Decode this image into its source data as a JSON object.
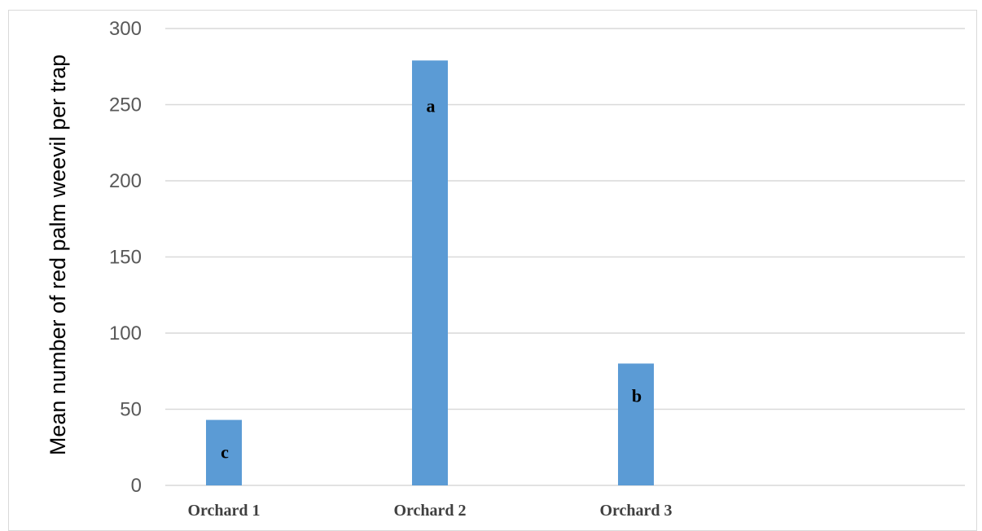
{
  "chart_data": {
    "type": "bar",
    "title": "",
    "xlabel": "",
    "ylabel": "Mean number of red palm weevil per trap",
    "categories": [
      "Orchard 1",
      "Orchard 2",
      "Orchard 3"
    ],
    "values": [
      43,
      279,
      80
    ],
    "letters": [
      "c",
      "a",
      "b"
    ],
    "ylim": [
      0,
      300
    ],
    "yticks": [
      0,
      50,
      100,
      150,
      200,
      250,
      300
    ],
    "grid": true,
    "legend": "none",
    "bar_color": "#5b9bd5",
    "grid_color": "#d9d9d9"
  }
}
